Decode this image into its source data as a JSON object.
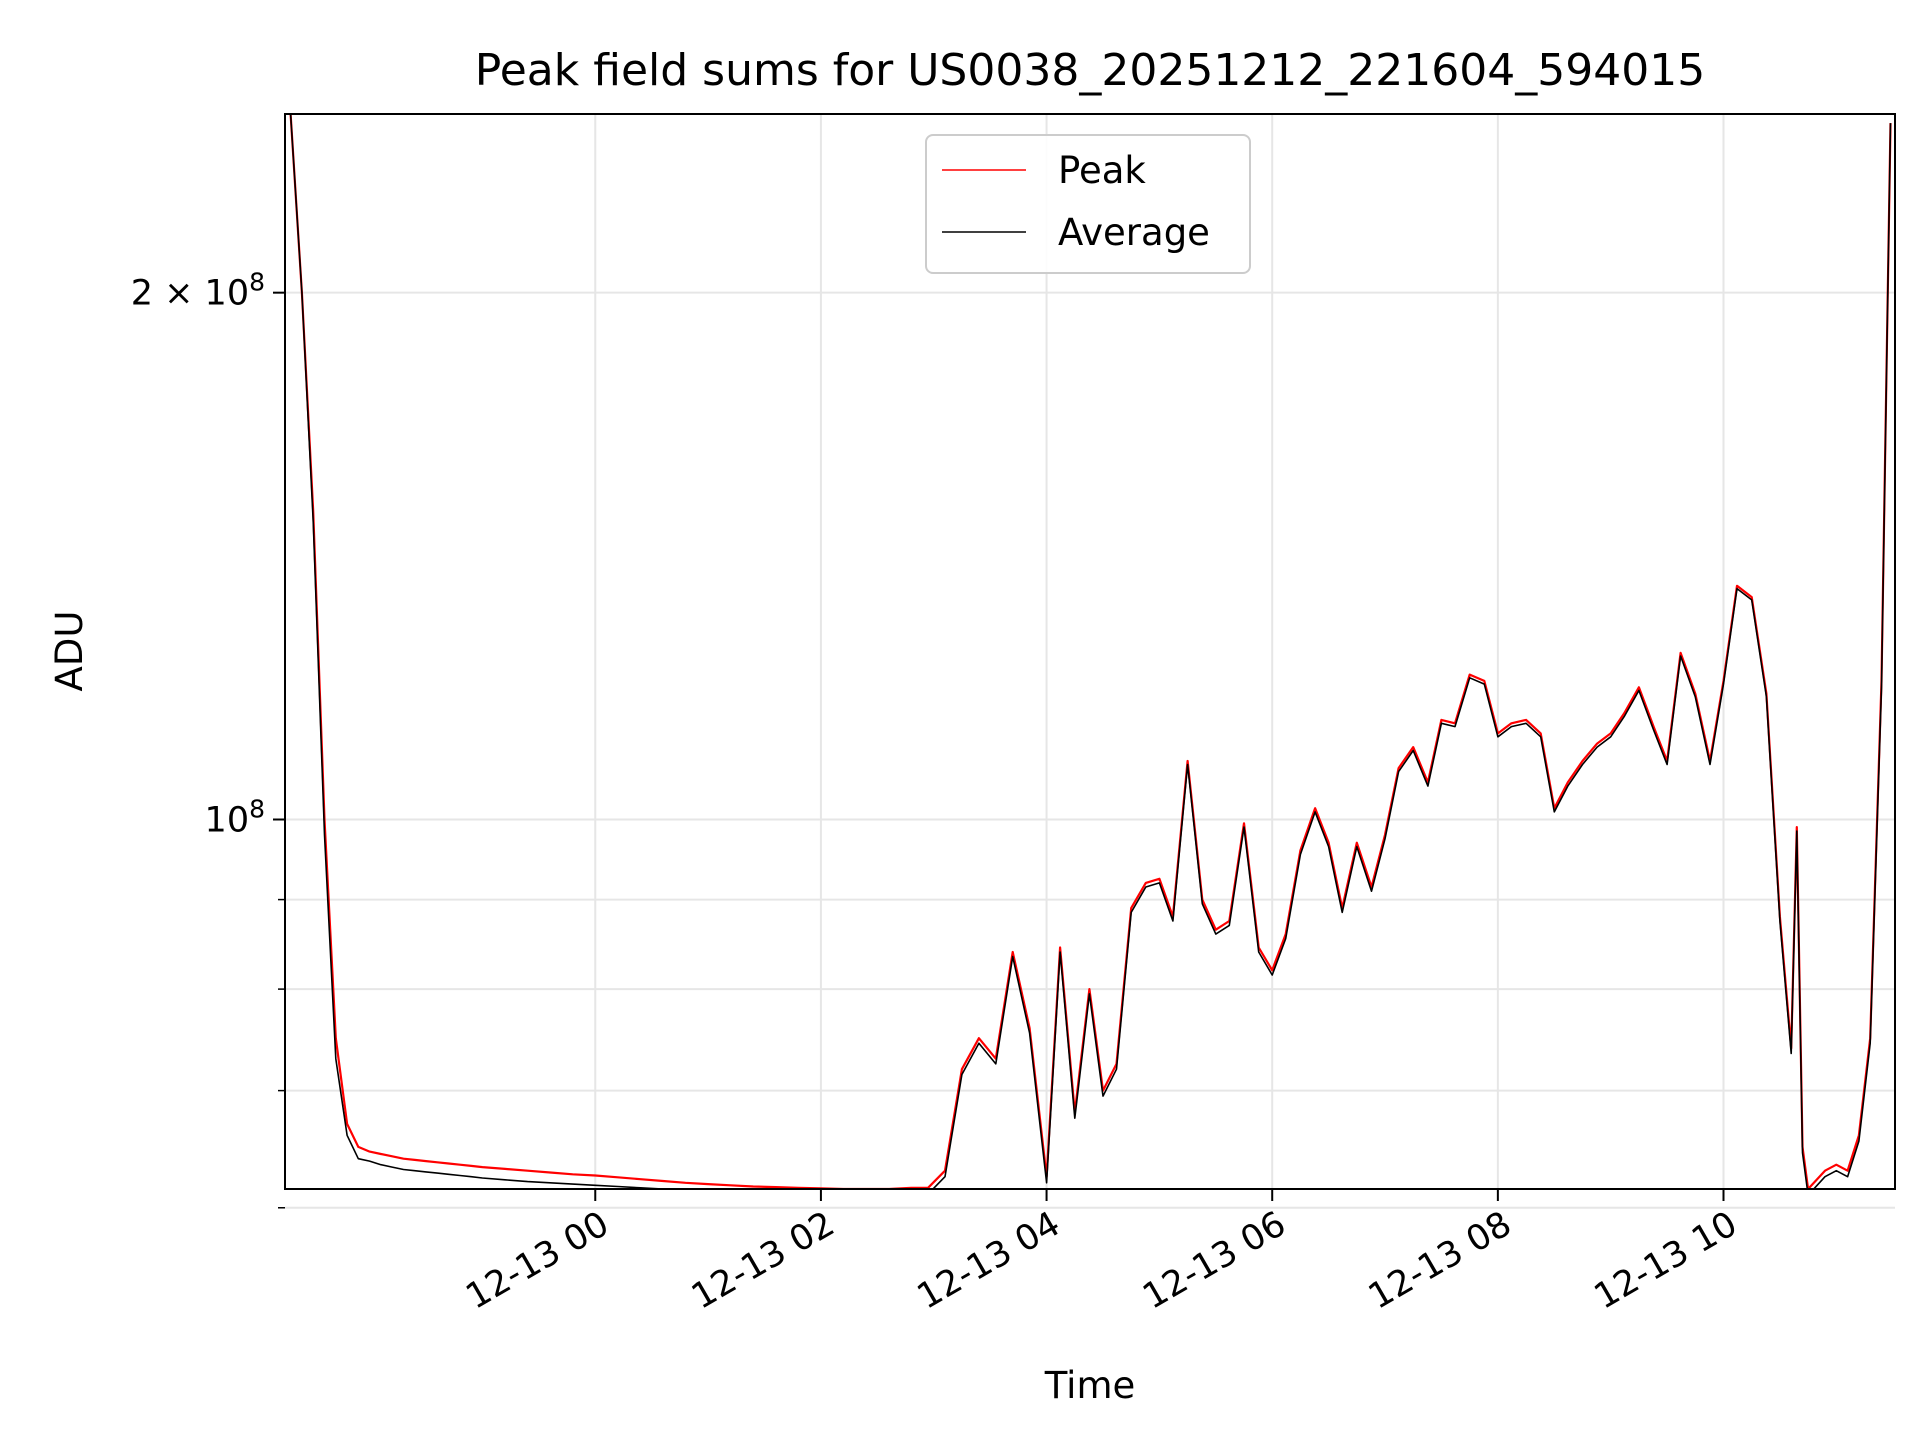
{
  "chart_data": {
    "type": "line",
    "title": "Peak field sums for US0038_20251212_221604_594015",
    "xlabel": "Time",
    "ylabel": "ADU",
    "yscale": "log",
    "grid": true,
    "legend_position": "top-center",
    "xlim_hours": [
      -2.75,
      11.52
    ],
    "ylim": [
      61500000,
      253000000
    ],
    "x_unit": "hours relative to 12-13 00:00",
    "x_ticks": [
      {
        "value": 0,
        "label": "12-13 00"
      },
      {
        "value": 2,
        "label": "12-13 02"
      },
      {
        "value": 4,
        "label": "12-13 04"
      },
      {
        "value": 6,
        "label": "12-13 06"
      },
      {
        "value": 8,
        "label": "12-13 08"
      },
      {
        "value": 10,
        "label": "12-13 10"
      }
    ],
    "y_major_ticks": [
      {
        "value": 100000000,
        "base": "10",
        "exp": "8",
        "mult": ""
      },
      {
        "value": 200000000,
        "base": "10",
        "exp": "8",
        "mult": "2 × "
      }
    ],
    "y_minor_ticks": [
      60000000,
      70000000,
      80000000,
      90000000
    ],
    "series": [
      {
        "name": "Peak",
        "color": "#ff0000",
        "x": [
          -2.7,
          -2.6,
          -2.5,
          -2.4,
          -2.3,
          -2.2,
          -2.1,
          -2.0,
          -1.9,
          -1.8,
          -1.7,
          -1.6,
          -1.5,
          -1.4,
          -1.3,
          -1.2,
          -1.1,
          -1.0,
          -0.8,
          -0.6,
          -0.4,
          -0.2,
          0.0,
          0.2,
          0.4,
          0.6,
          0.8,
          1.0,
          1.2,
          1.4,
          1.6,
          1.8,
          2.0,
          2.2,
          2.4,
          2.6,
          2.8,
          2.95,
          3.1,
          3.25,
          3.4,
          3.55,
          3.7,
          3.85,
          4.0,
          4.12,
          4.25,
          4.38,
          4.5,
          4.62,
          4.75,
          4.88,
          5.0,
          5.12,
          5.25,
          5.38,
          5.5,
          5.62,
          5.75,
          5.88,
          6.0,
          6.12,
          6.25,
          6.38,
          6.5,
          6.62,
          6.75,
          6.88,
          7.0,
          7.12,
          7.25,
          7.38,
          7.5,
          7.62,
          7.75,
          7.88,
          8.0,
          8.12,
          8.25,
          8.38,
          8.5,
          8.62,
          8.75,
          8.88,
          9.0,
          9.12,
          9.25,
          9.38,
          9.5,
          9.62,
          9.75,
          9.88,
          10.0,
          10.12,
          10.25,
          10.38,
          10.5,
          10.6,
          10.65,
          10.7,
          10.75,
          10.9,
          11.0,
          11.1,
          11.2,
          11.3,
          11.4,
          11.48
        ],
        "y": [
          253000000,
          200000000,
          150000000,
          100000000,
          75000000,
          67000000,
          65000000,
          64600000,
          64400000,
          64200000,
          64000000,
          63900000,
          63800000,
          63700000,
          63600000,
          63500000,
          63400000,
          63300000,
          63150000,
          63000000,
          62850000,
          62700000,
          62600000,
          62450000,
          62300000,
          62150000,
          62000000,
          61900000,
          61800000,
          61700000,
          61650000,
          61600000,
          61550000,
          61500000,
          61500000,
          61500000,
          61600000,
          61600000,
          63000000,
          72000000,
          75000000,
          73000000,
          84000000,
          76000000,
          62500000,
          84500000,
          68000000,
          80000000,
          70000000,
          72500000,
          89000000,
          92000000,
          92500000,
          88000000,
          108000000,
          90000000,
          86500000,
          87500000,
          99500000,
          84500000,
          82000000,
          86000000,
          96000000,
          101500000,
          97000000,
          89000000,
          97000000,
          91500000,
          98000000,
          107000000,
          110000000,
          105000000,
          114000000,
          113500000,
          121000000,
          120000000,
          112000000,
          113500000,
          114000000,
          112000000,
          101500000,
          105000000,
          108000000,
          110500000,
          112000000,
          115000000,
          119000000,
          113000000,
          108000000,
          124500000,
          118000000,
          108000000,
          120000000,
          136000000,
          134000000,
          118000000,
          88000000,
          74000000,
          99000000,
          65000000,
          61500000,
          63000000,
          63500000,
          63000000,
          66000000,
          75000000,
          120000000,
          250000000
        ]
      },
      {
        "name": "Average",
        "color": "#000000",
        "x": [
          -2.7,
          -2.6,
          -2.5,
          -2.4,
          -2.3,
          -2.2,
          -2.1,
          -2.0,
          -1.9,
          -1.8,
          -1.7,
          -1.6,
          -1.5,
          -1.4,
          -1.3,
          -1.2,
          -1.1,
          -1.0,
          -0.8,
          -0.6,
          -0.4,
          -0.2,
          0.0,
          0.2,
          0.4,
          0.6,
          0.8,
          1.0,
          1.2,
          1.4,
          1.6,
          1.8,
          2.0,
          2.2,
          2.4,
          2.6,
          2.8,
          2.95,
          3.1,
          3.25,
          3.4,
          3.55,
          3.7,
          3.85,
          4.0,
          4.12,
          4.25,
          4.38,
          4.5,
          4.62,
          4.75,
          4.88,
          5.0,
          5.12,
          5.25,
          5.38,
          5.5,
          5.62,
          5.75,
          5.88,
          6.0,
          6.12,
          6.25,
          6.38,
          6.5,
          6.62,
          6.75,
          6.88,
          7.0,
          7.12,
          7.25,
          7.38,
          7.5,
          7.62,
          7.75,
          7.88,
          8.0,
          8.12,
          8.25,
          8.38,
          8.5,
          8.62,
          8.75,
          8.88,
          9.0,
          9.12,
          9.25,
          9.38,
          9.5,
          9.62,
          9.75,
          9.88,
          10.0,
          10.12,
          10.25,
          10.38,
          10.5,
          10.6,
          10.65,
          10.7,
          10.75,
          10.9,
          11.0,
          11.1,
          11.2,
          11.3,
          11.4,
          11.48
        ],
        "y": [
          253000000,
          200000000,
          148000000,
          98000000,
          73000000,
          66000000,
          64000000,
          63800000,
          63500000,
          63300000,
          63100000,
          63000000,
          62900000,
          62800000,
          62700000,
          62600000,
          62500000,
          62400000,
          62250000,
          62100000,
          62000000,
          61900000,
          61800000,
          61700000,
          61600000,
          61500000,
          61400000,
          61350000,
          61300000,
          61250000,
          61200000,
          61150000,
          61100000,
          61050000,
          61000000,
          61000000,
          61100000,
          61100000,
          62500000,
          71500000,
          74500000,
          72500000,
          83500000,
          75500000,
          62000000,
          84000000,
          67500000,
          79500000,
          69500000,
          72000000,
          88500000,
          91500000,
          92000000,
          87500000,
          107500000,
          89500000,
          86000000,
          87000000,
          99000000,
          84000000,
          81500000,
          85500000,
          95500000,
          101000000,
          96500000,
          88500000,
          96500000,
          91000000,
          97500000,
          106500000,
          109500000,
          104500000,
          113500000,
          113000000,
          120500000,
          119500000,
          111500000,
          113000000,
          113500000,
          111500000,
          101000000,
          104500000,
          107500000,
          110000000,
          111500000,
          114500000,
          118500000,
          112500000,
          107500000,
          124000000,
          117500000,
          107500000,
          119500000,
          135500000,
          133500000,
          117500000,
          87500000,
          73500000,
          98500000,
          64500000,
          61000000,
          62500000,
          63000000,
          62500000,
          65500000,
          74500000,
          119000000,
          250000000
        ]
      }
    ]
  }
}
